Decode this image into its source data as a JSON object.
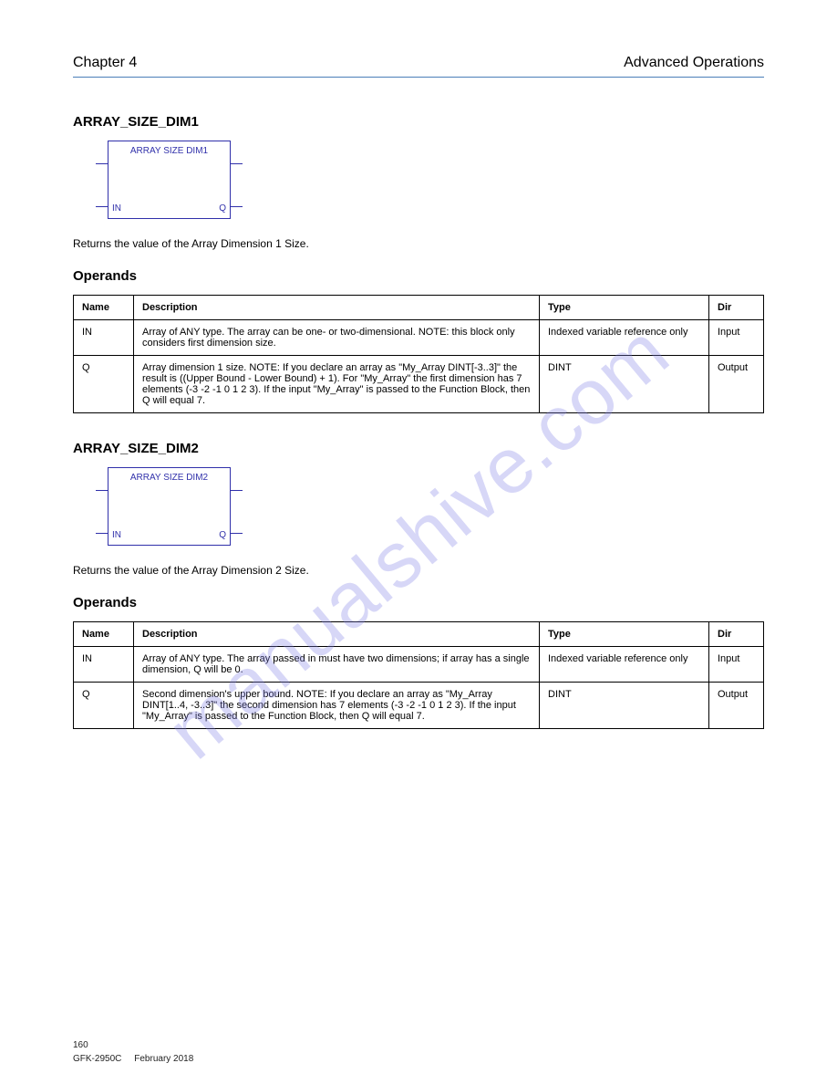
{
  "header": {
    "left": "Chapter 4",
    "right": "Advanced Operations"
  },
  "sections": [
    {
      "title": "ARRAY_SIZE_DIM1",
      "block": {
        "label": "ARRAY SIZE DIM1",
        "in": "IN",
        "q": "Q"
      },
      "paragraph": "Returns the value of the Array Dimension 1 Size.",
      "operands_title": "Operands",
      "table": {
        "headers": [
          "Name",
          "Description",
          "Type",
          "Dir"
        ],
        "rows": [
          [
            "IN",
            "Array of ANY type. The array can be one- or two-dimensional. NOTE: this block only considers first dimension size.",
            "Indexed variable reference only",
            "Input"
          ],
          [
            "Q",
            "Array dimension 1 size.\nNOTE: If you declare an array as \"My_Array DINT[-3..3]\" the result is ((Upper Bound - Lower Bound) + 1). For \"My_Array\" the first dimension has 7 elements (-3 -2 -1 0 1 2 3). If the input \"My_Array\" is passed to the Function Block, then Q will equal 7.",
            "DINT",
            "Output"
          ]
        ]
      }
    },
    {
      "title": "ARRAY_SIZE_DIM2",
      "block": {
        "label": "ARRAY SIZE DIM2",
        "in": "IN",
        "q": "Q"
      },
      "paragraph": "Returns the value of the Array Dimension 2 Size.",
      "operands_title": "Operands",
      "table": {
        "headers": [
          "Name",
          "Description",
          "Type",
          "Dir"
        ],
        "rows": [
          [
            "IN",
            "Array of ANY type. The array passed in must have two dimensions; if array has a single dimension, Q will be 0.",
            "Indexed variable reference only",
            "Input"
          ],
          [
            "Q",
            "Second dimension's upper bound.\nNOTE: If you declare an array as \"My_Array DINT[1..4, -3..3]\" the second dimension has 7 elements (-3 -2 -1 0 1 2 3). If the input \"My_Array\" is passed to the Function Block, then Q will equal 7.",
            "DINT",
            "Output"
          ]
        ]
      }
    }
  ],
  "footer": {
    "page": "160",
    "ref1": "GFK-2950C",
    "ref2": "February 2018"
  },
  "watermark": "manualshive.com"
}
